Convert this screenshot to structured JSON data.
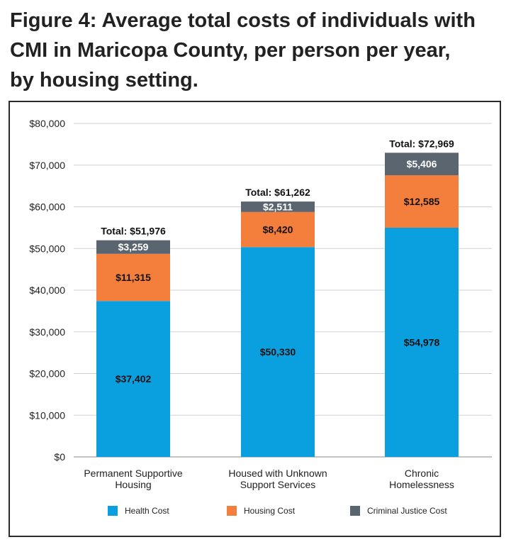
{
  "title_lines": [
    "Figure 4: Average total costs of individuals with",
    "CMI in Maricopa County, per person per year,",
    "by housing setting."
  ],
  "colors": {
    "health": "#0a9fdf",
    "housing": "#f47f3c",
    "criminal": "#5a6570",
    "grid": "#d0d0d0",
    "axis": "#888888"
  },
  "chart_data": {
    "type": "bar",
    "stacked": true,
    "title": "Figure 4: Average total costs of individuals with CMI in Maricopa County, per person per year, by housing setting.",
    "categories": [
      [
        "Permanent Supportive",
        "Housing"
      ],
      [
        "Housed with Unknown",
        "Support Services"
      ],
      [
        "Chronic",
        "Homelessness"
      ]
    ],
    "series": [
      {
        "name": "Health Cost",
        "key": "health",
        "values": [
          37402,
          50330,
          54978
        ],
        "labels": [
          "$37,402",
          "$50,330",
          "$54,978"
        ]
      },
      {
        "name": "Housing Cost",
        "key": "housing",
        "values": [
          11315,
          8420,
          12585
        ],
        "labels": [
          "$11,315",
          "$8,420",
          "$12,585"
        ]
      },
      {
        "name": "Criminal Justice Cost",
        "key": "criminal",
        "values": [
          3259,
          2511,
          5406
        ],
        "labels": [
          "$3,259",
          "$2,511",
          "$5,406"
        ]
      }
    ],
    "totals": [
      "Total: $51,976",
      "Total: $61,262",
      "Total: $72,969"
    ],
    "total_values": [
      51976,
      61262,
      72969
    ],
    "ylim": [
      0,
      80000
    ],
    "yticks": [
      0,
      10000,
      20000,
      30000,
      40000,
      50000,
      60000,
      70000,
      80000
    ],
    "ytick_labels": [
      "$0",
      "$10,000",
      "$20,000",
      "$30,000",
      "$40,000",
      "$50,000",
      "$60,000",
      "$70,000",
      "$80,000"
    ],
    "grid": true,
    "legend": "bottom"
  }
}
